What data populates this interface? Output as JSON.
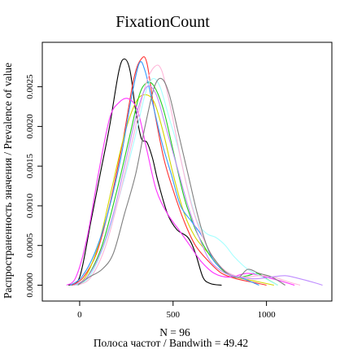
{
  "chart_data": {
    "type": "line",
    "title": "FixationCount",
    "xlabel_line1": "N = 96",
    "xlabel_line2": "Полоса частот / Bandwith = 49.42",
    "ylabel": "Распространенность значения / Prevalence of value",
    "xlim": [
      -200,
      1350
    ],
    "ylim": [
      -0.0002,
      0.00306
    ],
    "x_ticks": [
      0,
      500,
      1000
    ],
    "y_ticks": [
      0.0,
      0.0005,
      0.001,
      0.0015,
      0.002,
      0.0025
    ],
    "y_tick_labels": [
      "0.0000",
      "0.0005",
      "0.0010",
      "0.0015",
      "0.0020",
      "0.0025"
    ],
    "series": [
      {
        "color": "#000000",
        "points": [
          [
            -60,
            0
          ],
          [
            0,
            0.0001
          ],
          [
            60,
            0.0008
          ],
          [
            110,
            0.0014
          ],
          [
            160,
            0.002
          ],
          [
            210,
            0.0027
          ],
          [
            240,
            0.00285
          ],
          [
            270,
            0.0027
          ],
          [
            300,
            0.0022
          ],
          [
            330,
            0.00185
          ],
          [
            360,
            0.0018
          ],
          [
            390,
            0.0016
          ],
          [
            420,
            0.0013
          ],
          [
            470,
            0.0009
          ],
          [
            520,
            0.0007
          ],
          [
            580,
            0.0006
          ],
          [
            620,
            0.0004
          ],
          [
            660,
            0.0001
          ],
          [
            700,
            2e-05
          ],
          [
            760,
            0
          ]
        ]
      },
      {
        "color": "#ff3333",
        "points": [
          [
            -40,
            0
          ],
          [
            20,
            0.0001
          ],
          [
            90,
            0.0004
          ],
          [
            160,
            0.001
          ],
          [
            230,
            0.0018
          ],
          [
            290,
            0.0026
          ],
          [
            330,
            0.00285
          ],
          [
            360,
            0.0028
          ],
          [
            400,
            0.0022
          ],
          [
            450,
            0.0016
          ],
          [
            500,
            0.0012
          ],
          [
            560,
            0.0008
          ],
          [
            620,
            0.0005
          ],
          [
            690,
            0.0003
          ],
          [
            760,
            0.00015
          ],
          [
            840,
            8e-05
          ],
          [
            920,
            4e-05
          ],
          [
            1000,
            0
          ]
        ]
      },
      {
        "color": "#d4d400",
        "points": [
          [
            -30,
            0
          ],
          [
            30,
            0.0001
          ],
          [
            100,
            0.0005
          ],
          [
            170,
            0.0012
          ],
          [
            240,
            0.0019
          ],
          [
            300,
            0.0023
          ],
          [
            350,
            0.0024
          ],
          [
            400,
            0.0023
          ],
          [
            450,
            0.0019
          ],
          [
            500,
            0.0014
          ],
          [
            560,
            0.0009
          ],
          [
            620,
            0.0006
          ],
          [
            690,
            0.0004
          ],
          [
            760,
            0.0002
          ],
          [
            840,
            0.0001
          ],
          [
            920,
            6e-05
          ],
          [
            1000,
            2e-05
          ],
          [
            1040,
            0
          ]
        ]
      },
      {
        "color": "#22cc22",
        "points": [
          [
            -20,
            0
          ],
          [
            40,
            0.0001
          ],
          [
            120,
            0.0005
          ],
          [
            200,
            0.0012
          ],
          [
            270,
            0.0019
          ],
          [
            320,
            0.0024
          ],
          [
            360,
            0.00255
          ],
          [
            400,
            0.0025
          ],
          [
            450,
            0.0022
          ],
          [
            500,
            0.0017
          ],
          [
            560,
            0.0011
          ],
          [
            620,
            0.0007
          ],
          [
            690,
            0.0004
          ],
          [
            760,
            0.0002
          ],
          [
            830,
            0.0001
          ],
          [
            900,
            0.00012
          ],
          [
            950,
            0.00015
          ],
          [
            1000,
            8e-05
          ],
          [
            1060,
            0
          ]
        ]
      },
      {
        "color": "#3399ff",
        "points": [
          [
            -50,
            0
          ],
          [
            10,
            0.0001
          ],
          [
            80,
            0.0004
          ],
          [
            150,
            0.0009
          ],
          [
            220,
            0.0016
          ],
          [
            280,
            0.0024
          ],
          [
            320,
            0.0028
          ],
          [
            350,
            0.0027
          ],
          [
            390,
            0.0023
          ],
          [
            440,
            0.0018
          ],
          [
            490,
            0.0014
          ],
          [
            540,
            0.001
          ],
          [
            600,
            0.0008
          ],
          [
            660,
            0.0006
          ],
          [
            720,
            0.0003
          ],
          [
            800,
            0.00015
          ],
          [
            880,
            8e-05
          ],
          [
            960,
            0
          ]
        ]
      },
      {
        "color": "#ff33ff",
        "points": [
          [
            -70,
            0
          ],
          [
            -20,
            0.0001
          ],
          [
            40,
            0.0006
          ],
          [
            100,
            0.0014
          ],
          [
            160,
            0.0021
          ],
          [
            210,
            0.0023
          ],
          [
            260,
            0.00235
          ],
          [
            310,
            0.0022
          ],
          [
            360,
            0.0017
          ],
          [
            410,
            0.0012
          ],
          [
            470,
            0.0009
          ],
          [
            530,
            0.0007
          ],
          [
            590,
            0.0005
          ],
          [
            650,
            0.0003
          ],
          [
            720,
            0.00015
          ],
          [
            800,
            0.0001
          ],
          [
            900,
            0.00015
          ],
          [
            1000,
            0.0001
          ],
          [
            1080,
            5e-05
          ],
          [
            1150,
            0
          ]
        ]
      },
      {
        "color": "#a8ffff",
        "points": [
          [
            -20,
            0
          ],
          [
            50,
            0.0001
          ],
          [
            130,
            0.0005
          ],
          [
            210,
            0.0011
          ],
          [
            290,
            0.0018
          ],
          [
            350,
            0.0024
          ],
          [
            390,
            0.0026
          ],
          [
            430,
            0.0025
          ],
          [
            480,
            0.0021
          ],
          [
            530,
            0.0017
          ],
          [
            580,
            0.0012
          ],
          [
            630,
            0.0008
          ],
          [
            680,
            0.00065
          ],
          [
            730,
            0.0006
          ],
          [
            780,
            0.0005
          ],
          [
            830,
            0.00035
          ],
          [
            900,
            0.0002
          ],
          [
            980,
            0.0001
          ],
          [
            1060,
            0
          ]
        ]
      },
      {
        "color": "#ffb6d9",
        "points": [
          [
            -10,
            0
          ],
          [
            60,
            0.0001
          ],
          [
            140,
            0.0005
          ],
          [
            220,
            0.0012
          ],
          [
            290,
            0.0019
          ],
          [
            350,
            0.0025
          ],
          [
            400,
            0.00275
          ],
          [
            440,
            0.0027
          ],
          [
            490,
            0.0022
          ],
          [
            540,
            0.0016
          ],
          [
            600,
            0.001
          ],
          [
            660,
            0.0006
          ],
          [
            730,
            0.0003
          ],
          [
            800,
            0.00015
          ],
          [
            880,
            0.0001
          ],
          [
            960,
            0.00012
          ],
          [
            1040,
            0.0001
          ],
          [
            1120,
            4e-05
          ],
          [
            1180,
            0
          ]
        ]
      },
      {
        "color": "#808080",
        "points": [
          [
            -10,
            0
          ],
          [
            50,
            0.0001
          ],
          [
            120,
            0.0002
          ],
          [
            180,
            0.0004
          ],
          [
            240,
            0.0009
          ],
          [
            300,
            0.0014
          ],
          [
            350,
            0.002
          ],
          [
            400,
            0.0025
          ],
          [
            440,
            0.0026
          ],
          [
            480,
            0.0024
          ],
          [
            530,
            0.0019
          ],
          [
            580,
            0.0014
          ],
          [
            630,
            0.0009
          ],
          [
            680,
            0.0005
          ],
          [
            730,
            0.0003
          ],
          [
            790,
            0.00015
          ],
          [
            850,
            0.0001
          ],
          [
            900,
            0.0002
          ],
          [
            960,
            0.00015
          ],
          [
            1030,
            0.0001
          ],
          [
            1100,
            0
          ]
        ]
      },
      {
        "color": "#bf8cff",
        "points": [
          [
            -30,
            0
          ],
          [
            40,
            0.0001
          ],
          [
            110,
            0.0004
          ],
          [
            180,
            0.0009
          ],
          [
            250,
            0.0016
          ],
          [
            310,
            0.0022
          ],
          [
            360,
            0.0025
          ],
          [
            410,
            0.0024
          ],
          [
            460,
            0.002
          ],
          [
            520,
            0.0015
          ],
          [
            580,
            0.001
          ],
          [
            640,
            0.0006
          ],
          [
            700,
            0.0003
          ],
          [
            780,
            0.00015
          ],
          [
            860,
            0.0001
          ],
          [
            940,
            8e-05
          ],
          [
            1020,
            0.0001
          ],
          [
            1100,
            0.00012
          ],
          [
            1180,
            8e-05
          ],
          [
            1260,
            3e-05
          ],
          [
            1300,
            0
          ]
        ]
      }
    ]
  }
}
